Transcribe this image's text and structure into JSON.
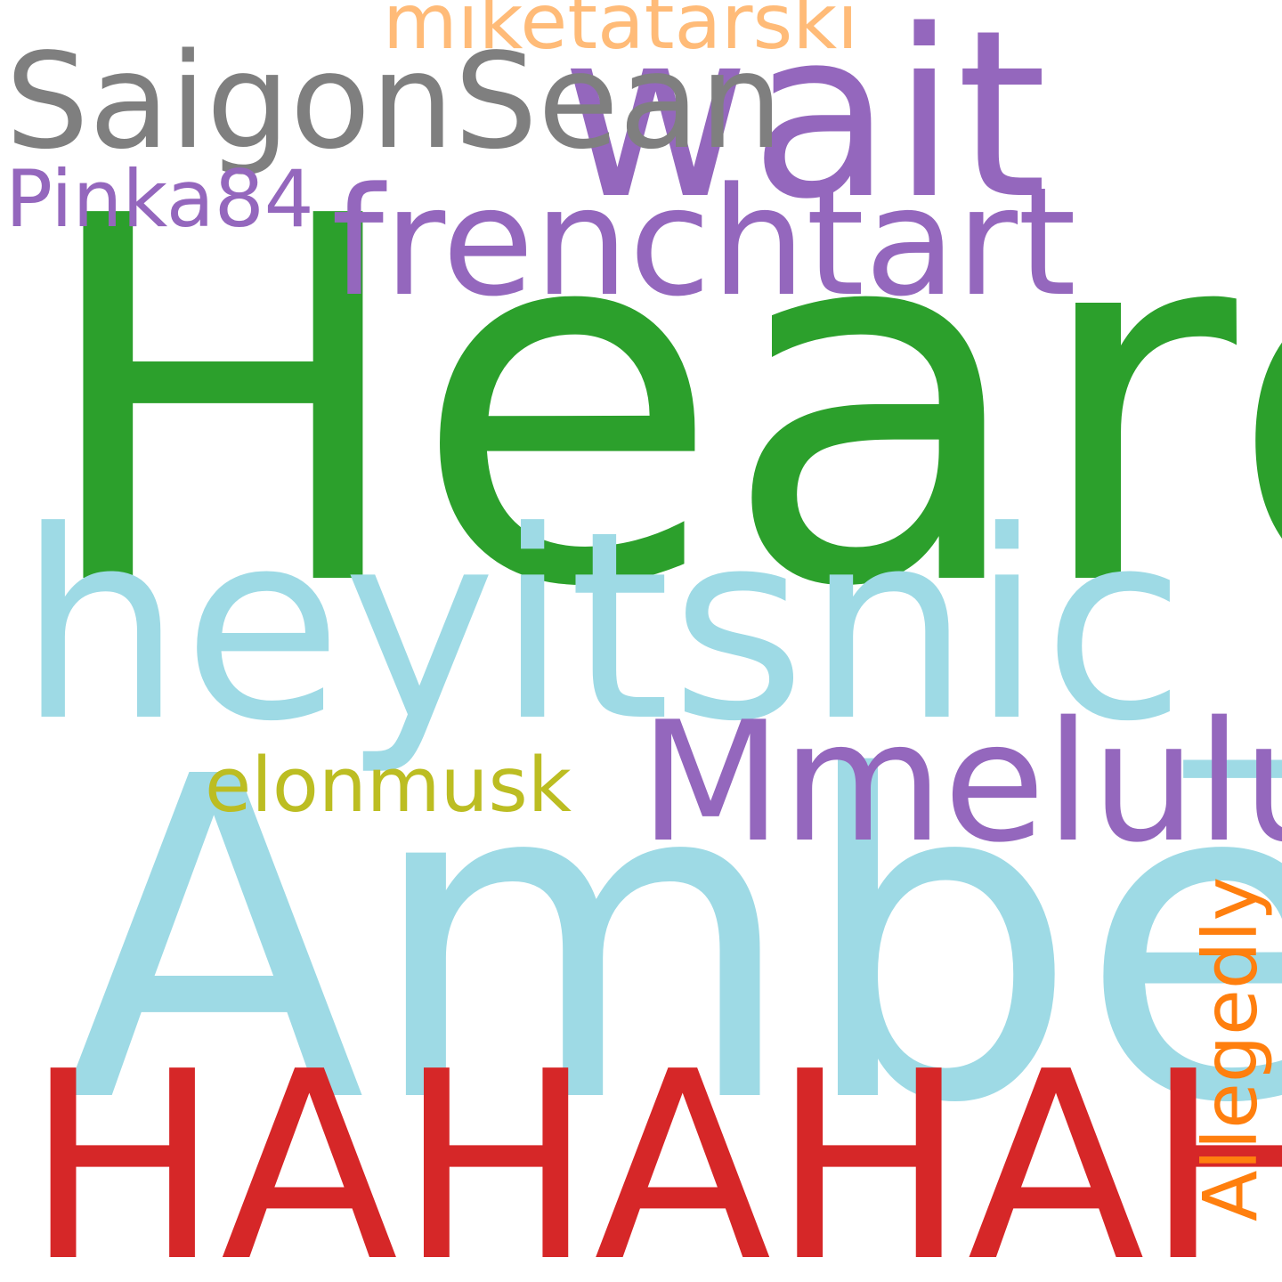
{
  "words": {
    "heard": {
      "text": "Heard",
      "color": "#2ca02c"
    },
    "amber": {
      "text": "Amber",
      "color": "#9edae5"
    },
    "hahahah": {
      "text": "HAHAHAHAH",
      "color": "#d62728"
    },
    "heyitsnic": {
      "text": "heyitsnic_",
      "color": "#9edae5"
    },
    "wait": {
      "text": "wait",
      "color": "#9467bd"
    },
    "mmelulu": {
      "text": "Mmelulu",
      "color": "#9467bd"
    },
    "frenchtart": {
      "text": "frenchtart",
      "color": "#9467bd"
    },
    "saigonsean": {
      "text": "SaigonSean",
      "color": "#7f7f7f"
    },
    "miketatarski": {
      "text": "miketatarski",
      "color": "#ffbb78"
    },
    "pinka84": {
      "text": "Pinka84",
      "color": "#9467bd"
    },
    "elonmusk": {
      "text": "elonmusk",
      "color": "#bcbd22"
    },
    "allegedly": {
      "text": "Allegedly",
      "color": "#ff7f0e",
      "orientation": "vertical"
    }
  },
  "background": "#ffffff"
}
